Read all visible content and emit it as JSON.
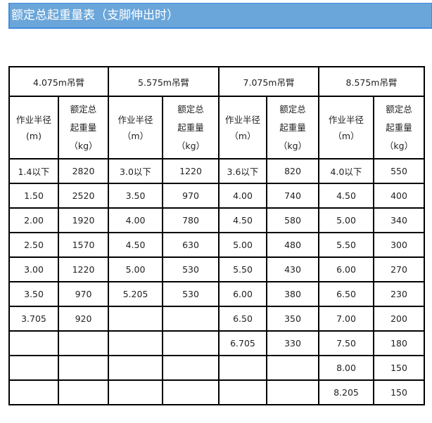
{
  "title": "额定总起重量表（支脚伸出时）",
  "booms": [
    "4.075m吊臂",
    "5.575m吊臂",
    "7.075m吊臂",
    "8.575m吊臂"
  ],
  "subheaders": [
    {
      "radius": [
        "作业半径",
        "(m)"
      ],
      "load": [
        "额定总",
        "起重量",
        "（kg）"
      ]
    },
    {
      "radius": [
        "作业半径",
        "（m）"
      ],
      "load": [
        "额定总",
        "起重量",
        "（kg）"
      ]
    },
    {
      "radius": [
        "作业半径",
        "（m）"
      ],
      "load": [
        "额定总",
        "起重量",
        "（kg）"
      ]
    },
    {
      "radius": [
        "作业半径",
        "（m）"
      ],
      "load": [
        "额定总",
        "起重量",
        "（kg）"
      ]
    }
  ],
  "rows": [
    [
      "1.4以下",
      "2820",
      "3.0以下",
      "1220",
      "3.6以下",
      "820",
      "4.0以下",
      "550"
    ],
    [
      "1.50",
      "2520",
      "3.50",
      "970",
      "4.00",
      "740",
      "4.50",
      "400"
    ],
    [
      "2.00",
      "1920",
      "4.00",
      "780",
      "4.50",
      "580",
      "5.00",
      "340"
    ],
    [
      "2.50",
      "1570",
      "4.50",
      "630",
      "5.00",
      "480",
      "5.50",
      "300"
    ],
    [
      "3.00",
      "1220",
      "5.00",
      "530",
      "5.50",
      "430",
      "6.00",
      "270"
    ],
    [
      "3.50",
      "970",
      "5.205",
      "530",
      "6.00",
      "380",
      "6.50",
      "230"
    ],
    [
      "3.705",
      "920",
      "",
      "",
      "6.50",
      "350",
      "7.00",
      "200"
    ],
    [
      "",
      "",
      "",
      "",
      "6.705",
      "330",
      "7.50",
      "180"
    ],
    [
      "",
      "",
      "",
      "",
      "",
      "",
      "8.00",
      "150"
    ],
    [
      "",
      "",
      "",
      "",
      "",
      "",
      "8.205",
      "150"
    ]
  ]
}
